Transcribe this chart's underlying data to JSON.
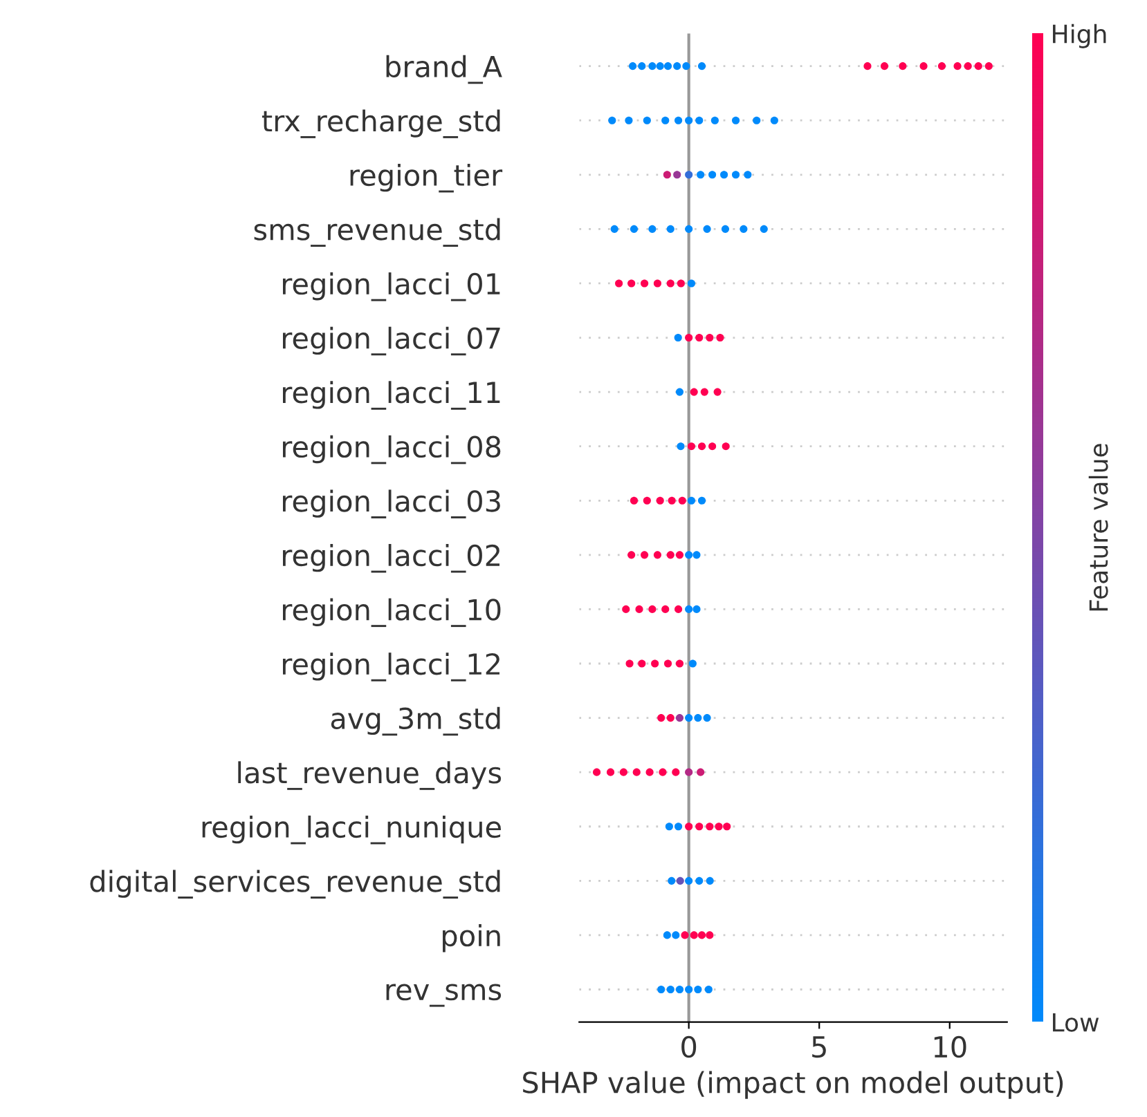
{
  "chart_data": {
    "type": "scatter",
    "orientation": "horizontal",
    "xlabel": "SHAP value (impact on model output)",
    "clabel": "Feature value",
    "categories": [
      "brand_A",
      "trx_recharge_std",
      "region_tier",
      "sms_revenue_std",
      "region_lacci_01",
      "region_lacci_07",
      "region_lacci_11",
      "region_lacci_08",
      "region_lacci_03",
      "region_lacci_02",
      "region_lacci_10",
      "region_lacci_12",
      "avg_3m_std",
      "last_revenue_days",
      "region_lacci_nunique",
      "digital_services_revenue_std",
      "poin",
      "rev_sms"
    ],
    "series": [
      {
        "x": [
          "brand_A",
          "brand_A",
          "brand_A",
          "brand_A",
          "brand_A",
          "brand_A",
          "brand_A",
          "brand_A",
          "brand_A",
          "brand_A",
          "brand_A",
          "brand_A",
          "brand_A",
          "brand_A",
          "brand_A",
          "brand_A",
          "brand_A"
        ],
        "values": [
          -2.15,
          -1.8,
          -1.4,
          -1.1,
          -0.8,
          -0.45,
          -0.1,
          0.5,
          6.85,
          7.5,
          8.2,
          9,
          9.7,
          10.3,
          10.7,
          11.1,
          11.5
        ],
        "colors": [
          "#008afb",
          "#008afb",
          "#008afb",
          "#008afb",
          "#008afb",
          "#008afb",
          "#008afb",
          "#008afb",
          "#ff0052",
          "#ff0052",
          "#ff0052",
          "#ff0052",
          "#ff0052",
          "#ff0052",
          "#ff0052",
          "#ff0052",
          "#ff0052"
        ]
      },
      {
        "x": [
          "trx_recharge_std",
          "trx_recharge_std",
          "trx_recharge_std",
          "trx_recharge_std",
          "trx_recharge_std",
          "trx_recharge_std",
          "trx_recharge_std",
          "trx_recharge_std",
          "trx_recharge_std",
          "trx_recharge_std",
          "trx_recharge_std"
        ],
        "values": [
          -2.94,
          -2.3,
          -1.6,
          -0.9,
          -0.4,
          0,
          0.4,
          1,
          1.8,
          2.6,
          3.28
        ],
        "color": "#008afb"
      },
      {
        "x": [
          "region_tier",
          "region_tier",
          "region_tier",
          "region_tier",
          "region_tier",
          "region_tier",
          "region_tier",
          "region_tier"
        ],
        "values": [
          -0.83,
          -0.45,
          0,
          0.45,
          0.9,
          1.35,
          1.8,
          2.26
        ],
        "colors": [
          "#cc1c74",
          "#993796",
          "#336ed9",
          "#008afb",
          "#008afb",
          "#008afb",
          "#008afb",
          "#008afb"
        ]
      },
      {
        "x": [
          "sms_revenue_std",
          "sms_revenue_std",
          "sms_revenue_std",
          "sms_revenue_std",
          "sms_revenue_std",
          "sms_revenue_std",
          "sms_revenue_std",
          "sms_revenue_std",
          "sms_revenue_std"
        ],
        "values": [
          -2.85,
          -2.1,
          -1.4,
          -0.7,
          0,
          0.7,
          1.4,
          2.1,
          2.88
        ],
        "color": "#008afb"
      },
      {
        "x": [
          "region_lacci_01",
          "region_lacci_01",
          "region_lacci_01",
          "region_lacci_01",
          "region_lacci_01",
          "region_lacci_01",
          "region_lacci_01"
        ],
        "values": [
          -2.68,
          -2.2,
          -1.7,
          -1.2,
          -0.7,
          -0.3,
          0.1
        ],
        "colors": [
          "#ff0052",
          "#ff0052",
          "#ff0052",
          "#ff0052",
          "#ff0052",
          "#ff0052",
          "#008afb"
        ]
      },
      {
        "x": [
          "region_lacci_07",
          "region_lacci_07",
          "region_lacci_07",
          "region_lacci_07",
          "region_lacci_07"
        ],
        "values": [
          -0.41,
          0,
          0.4,
          0.8,
          1.2
        ],
        "colors": [
          "#008afb",
          "#ff0052",
          "#ff0052",
          "#ff0052",
          "#ff0052"
        ]
      },
      {
        "x": [
          "region_lacci_11",
          "region_lacci_11",
          "region_lacci_11",
          "region_lacci_11"
        ],
        "values": [
          -0.35,
          0.2,
          0.6,
          1.1
        ],
        "colors": [
          "#008afb",
          "#ff0052",
          "#ff0052",
          "#ff0052"
        ]
      },
      {
        "x": [
          "region_lacci_08",
          "region_lacci_08",
          "region_lacci_08",
          "region_lacci_08",
          "region_lacci_08"
        ],
        "values": [
          -0.31,
          0.1,
          0.5,
          0.9,
          1.42
        ],
        "colors": [
          "#008afb",
          "#ff0052",
          "#ff0052",
          "#ff0052",
          "#ff0052"
        ]
      },
      {
        "x": [
          "region_lacci_03",
          "region_lacci_03",
          "region_lacci_03",
          "region_lacci_03",
          "region_lacci_03",
          "region_lacci_03",
          "region_lacci_03"
        ],
        "values": [
          -2.1,
          -1.6,
          -1.1,
          -0.65,
          -0.25,
          0.1,
          0.5
        ],
        "colors": [
          "#ff0052",
          "#ff0052",
          "#ff0052",
          "#ff0052",
          "#ff0052",
          "#008afb",
          "#008afb"
        ]
      },
      {
        "x": [
          "region_lacci_02",
          "region_lacci_02",
          "region_lacci_02",
          "region_lacci_02",
          "region_lacci_02",
          "region_lacci_02",
          "region_lacci_02"
        ],
        "values": [
          -2.2,
          -1.7,
          -1.2,
          -0.7,
          -0.35,
          0,
          0.3
        ],
        "colors": [
          "#ff0052",
          "#ff0052",
          "#ff0052",
          "#ff0052",
          "#ff0052",
          "#008afb",
          "#008afb"
        ]
      },
      {
        "x": [
          "region_lacci_10",
          "region_lacci_10",
          "region_lacci_10",
          "region_lacci_10",
          "region_lacci_10",
          "region_lacci_10",
          "region_lacci_10"
        ],
        "values": [
          -2.41,
          -1.9,
          -1.4,
          -0.9,
          -0.4,
          0,
          0.3
        ],
        "colors": [
          "#ff0052",
          "#ff0052",
          "#ff0052",
          "#ff0052",
          "#ff0052",
          "#008afb",
          "#008afb"
        ]
      },
      {
        "x": [
          "region_lacci_12",
          "region_lacci_12",
          "region_lacci_12",
          "region_lacci_12",
          "region_lacci_12",
          "region_lacci_12"
        ],
        "values": [
          -2.27,
          -1.8,
          -1.3,
          -0.8,
          -0.35,
          0.15
        ],
        "colors": [
          "#ff0052",
          "#ff0052",
          "#ff0052",
          "#ff0052",
          "#ff0052",
          "#008afb"
        ]
      },
      {
        "x": [
          "avg_3m_std",
          "avg_3m_std",
          "avg_3m_std",
          "avg_3m_std",
          "avg_3m_std",
          "avg_3m_std"
        ],
        "values": [
          -1.06,
          -0.7,
          -0.35,
          0,
          0.35,
          0.7
        ],
        "colors": [
          "#ff0052",
          "#ff0052",
          "#993796",
          "#008afb",
          "#008afb",
          "#008afb"
        ]
      },
      {
        "x": [
          "last_revenue_days",
          "last_revenue_days",
          "last_revenue_days",
          "last_revenue_days",
          "last_revenue_days",
          "last_revenue_days",
          "last_revenue_days",
          "last_revenue_days",
          "last_revenue_days"
        ],
        "values": [
          -3.53,
          -3,
          -2.5,
          -2,
          -1.5,
          -1,
          -0.5,
          0,
          0.45
        ],
        "colors": [
          "#ff0052",
          "#ff0052",
          "#ff0052",
          "#ff0052",
          "#ff0052",
          "#ff0052",
          "#ff0052",
          "#b32985",
          "#cc1c74"
        ]
      },
      {
        "x": [
          "region_lacci_nunique",
          "region_lacci_nunique",
          "region_lacci_nunique",
          "region_lacci_nunique",
          "region_lacci_nunique",
          "region_lacci_nunique",
          "region_lacci_nunique"
        ],
        "values": [
          -0.75,
          -0.4,
          0,
          0.4,
          0.8,
          1.15,
          1.46
        ],
        "colors": [
          "#008afb",
          "#008afb",
          "#ff0052",
          "#ff0052",
          "#ff0052",
          "#ff0052",
          "#ff0052"
        ]
      },
      {
        "x": [
          "digital_services_revenue_std",
          "digital_services_revenue_std",
          "digital_services_revenue_std",
          "digital_services_revenue_std",
          "digital_services_revenue_std"
        ],
        "values": [
          -0.66,
          -0.33,
          0,
          0.4,
          0.81
        ],
        "colors": [
          "#008afb",
          "#6653b7",
          "#008afb",
          "#008afb",
          "#008afb"
        ]
      },
      {
        "x": [
          "poin",
          "poin",
          "poin",
          "poin",
          "poin",
          "poin"
        ],
        "values": [
          -0.83,
          -0.5,
          -0.15,
          0.2,
          0.5,
          0.8
        ],
        "colors": [
          "#008afb",
          "#008afb",
          "#ff0052",
          "#ff0052",
          "#ff0052",
          "#ff0052"
        ]
      },
      {
        "x": [
          "rev_sms",
          "rev_sms",
          "rev_sms",
          "rev_sms",
          "rev_sms",
          "rev_sms"
        ],
        "values": [
          -1.06,
          -0.7,
          -0.35,
          0,
          0.35,
          0.76
        ],
        "color": "#008afb"
      }
    ],
    "xlim": [
      -4.2,
      12.2
    ],
    "xticks": [
      0,
      5,
      10
    ],
    "clim": [
      0,
      1
    ],
    "cticks": [
      {
        "value": 0,
        "label": "Low"
      },
      {
        "value": 1,
        "label": "High"
      }
    ],
    "ref_lines": [
      {
        "axis": "x",
        "value": 0,
        "color": "#999999"
      }
    ],
    "grid": "y",
    "legend": false,
    "marker": "circle"
  }
}
